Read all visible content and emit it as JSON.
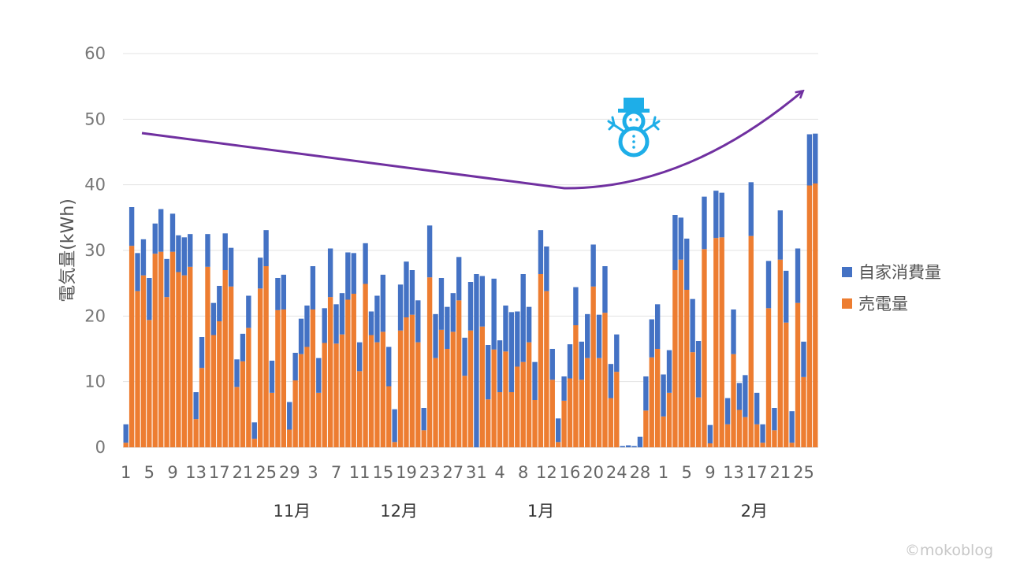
{
  "chart_data": {
    "type": "bar",
    "stacked": true,
    "title": "",
    "ylabel": "電気量(kWh)",
    "ylim": [
      0,
      60
    ],
    "yticks": [
      0,
      10,
      20,
      30,
      40,
      50,
      60
    ],
    "grid": true,
    "legend_position": "right",
    "x_tick_labels": [
      "1",
      "5",
      "9",
      "13",
      "17",
      "21",
      "25",
      "29",
      "3",
      "7",
      "11",
      "15",
      "19",
      "23",
      "27",
      "31",
      "4",
      "8",
      "12",
      "16",
      "20",
      "24",
      "28",
      "1",
      "5",
      "9",
      "13",
      "17",
      "21",
      "25"
    ],
    "months": [
      "11月",
      "12月",
      "1月",
      "2月"
    ],
    "series": [
      {
        "name": "売電量",
        "color": "#ED7D31",
        "values": [
          0.7,
          30.7,
          23.8,
          26.2,
          19.4,
          29.5,
          29.8,
          22.9,
          29.8,
          26.7,
          26.2,
          27.5,
          4.3,
          12.1,
          27.5,
          17.1,
          19.2,
          27.0,
          24.5,
          9.2,
          13.1,
          18.2,
          1.3,
          24.2,
          27.6,
          8.3,
          20.9,
          21.0,
          2.7,
          10.2,
          14.2,
          15.3,
          21.0,
          8.3,
          15.9,
          22.9,
          15.8,
          17.2,
          22.5,
          23.4,
          11.6,
          24.9,
          17.1,
          16.0,
          17.6,
          9.3,
          0.8,
          17.8,
          19.8,
          20.2,
          16.0,
          2.6,
          25.9,
          13.6,
          17.9,
          15.0,
          17.6,
          22.4,
          10.9,
          17.8,
          0.0,
          18.4,
          7.3,
          14.9,
          8.4,
          14.6,
          8.4,
          12.3,
          13.0,
          16.0,
          7.2,
          26.4,
          23.8,
          10.3,
          0.8,
          7.1,
          10.5,
          18.6,
          10.3,
          13.6,
          24.5,
          13.6,
          20.5,
          7.5,
          11.5,
          0.0,
          0.0,
          0.0,
          0.0,
          5.6,
          13.7,
          15.0,
          4.7,
          8.3,
          27.0,
          28.6,
          24.0,
          14.5,
          7.6,
          30.2,
          0.6,
          31.9,
          32.0,
          3.5,
          14.2,
          5.7,
          4.6,
          32.2,
          3.5,
          0.7,
          21.2,
          2.6,
          28.6,
          19.0,
          0.7,
          22.0,
          10.7,
          39.9,
          40.2
        ]
      },
      {
        "name": "自家消費量",
        "color": "#4472C4",
        "values": [
          2.8,
          5.9,
          5.8,
          5.5,
          6.4,
          4.6,
          6.5,
          5.8,
          5.8,
          5.6,
          5.8,
          5.0,
          4.1,
          4.7,
          5.0,
          4.9,
          5.4,
          5.6,
          5.9,
          4.2,
          4.2,
          4.9,
          2.5,
          4.7,
          5.5,
          4.9,
          4.9,
          5.3,
          4.2,
          4.2,
          5.4,
          6.3,
          6.6,
          5.3,
          5.3,
          7.4,
          6.0,
          6.3,
          7.2,
          6.2,
          4.4,
          6.2,
          3.6,
          7.1,
          8.7,
          6.0,
          5.0,
          7.0,
          8.5,
          6.8,
          6.4,
          3.4,
          7.9,
          6.7,
          7.9,
          6.4,
          5.9,
          6.6,
          5.8,
          7.4,
          26.4,
          7.7,
          8.3,
          10.8,
          7.9,
          7.0,
          12.2,
          8.4,
          13.4,
          5.4,
          5.8,
          6.7,
          6.8,
          4.7,
          3.6,
          3.7,
          5.2,
          5.8,
          5.8,
          6.7,
          6.4,
          6.6,
          7.1,
          5.2,
          5.7,
          0.2,
          0.3,
          0.2,
          1.6,
          5.2,
          5.8,
          6.8,
          6.4,
          6.5,
          8.4,
          6.4,
          7.8,
          8.1,
          8.6,
          8.0,
          2.8,
          7.2,
          6.8,
          4.0,
          6.8,
          4.1,
          6.4,
          8.2,
          4.8,
          2.8,
          7.2,
          3.4,
          7.5,
          7.9,
          4.8,
          8.3,
          5.4,
          7.8,
          7.6
        ]
      }
    ],
    "annotations": [
      {
        "type": "trend-arrow",
        "color": "#7030A0"
      },
      {
        "type": "snowman-icon",
        "color": "#1EAEE8"
      }
    ]
  },
  "watermark": "©mokoblog"
}
